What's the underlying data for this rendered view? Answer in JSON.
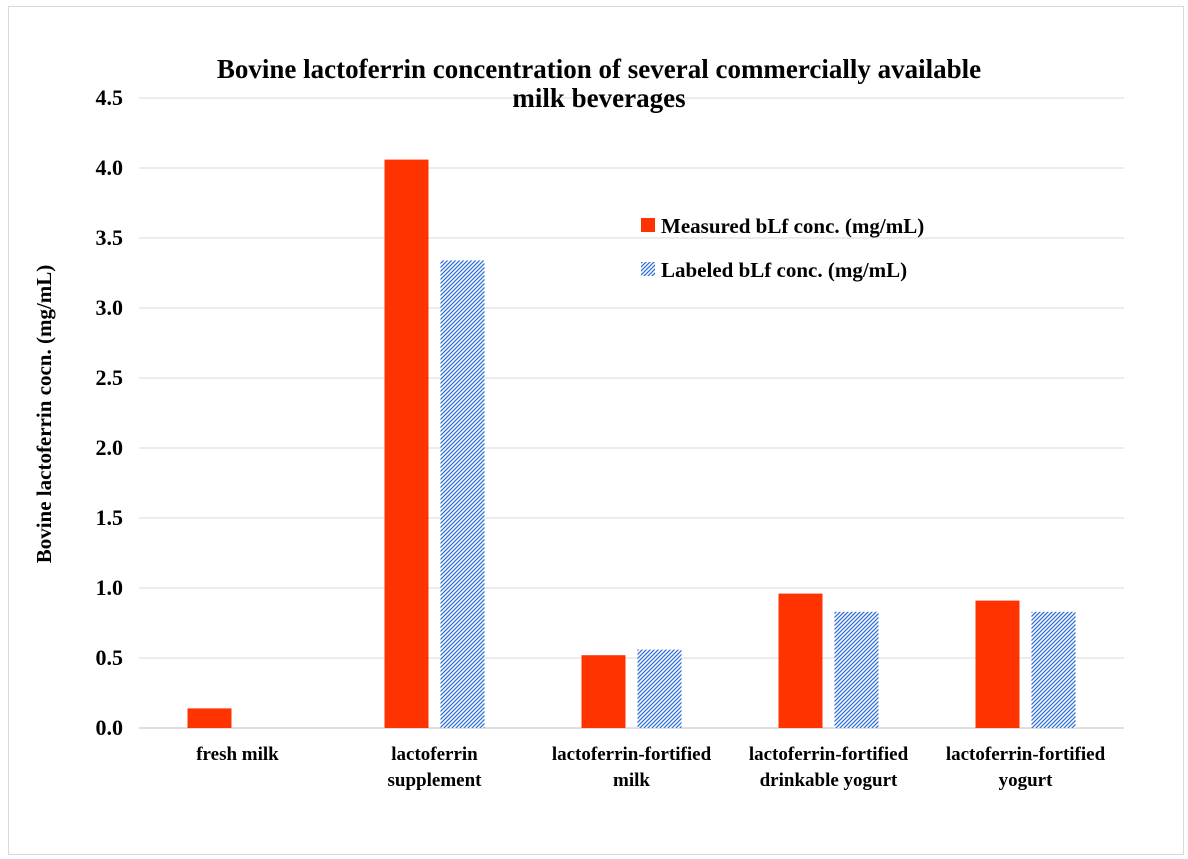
{
  "chart_data": {
    "type": "bar",
    "title": [
      "Bovine lactoferrin  concentration  of several  commercially  available",
      "milk beverages"
    ],
    "xlabel": "",
    "ylabel": "Bovine lactoferrin cocn. (mg/mL)",
    "ylim": [
      0,
      4.5
    ],
    "yticks": [
      "0.0",
      "0.5",
      "1.0",
      "1.5",
      "2.0",
      "2.5",
      "3.0",
      "3.5",
      "4.0",
      "4.5"
    ],
    "grid": true,
    "legend_position": "top-right",
    "categories": [
      [
        "fresh milk"
      ],
      [
        "lactoferrin",
        "supplement"
      ],
      [
        "lactoferrin-fortified",
        "milk"
      ],
      [
        "lactoferrin-fortified",
        "drinkable yogurt"
      ],
      [
        "lactoferrin-fortified",
        "yogurt"
      ]
    ],
    "series": [
      {
        "name": "Measured bLf conc. (mg/mL)",
        "values": [
          0.14,
          4.06,
          0.52,
          0.96,
          0.91
        ],
        "color": "#ff3300",
        "pattern": "solid"
      },
      {
        "name": "Labeled bLf conc. (mg/mL)",
        "values": [
          null,
          3.34,
          0.56,
          0.83,
          0.83
        ],
        "color": "#2e6fd6",
        "pattern": "hatched"
      }
    ]
  }
}
